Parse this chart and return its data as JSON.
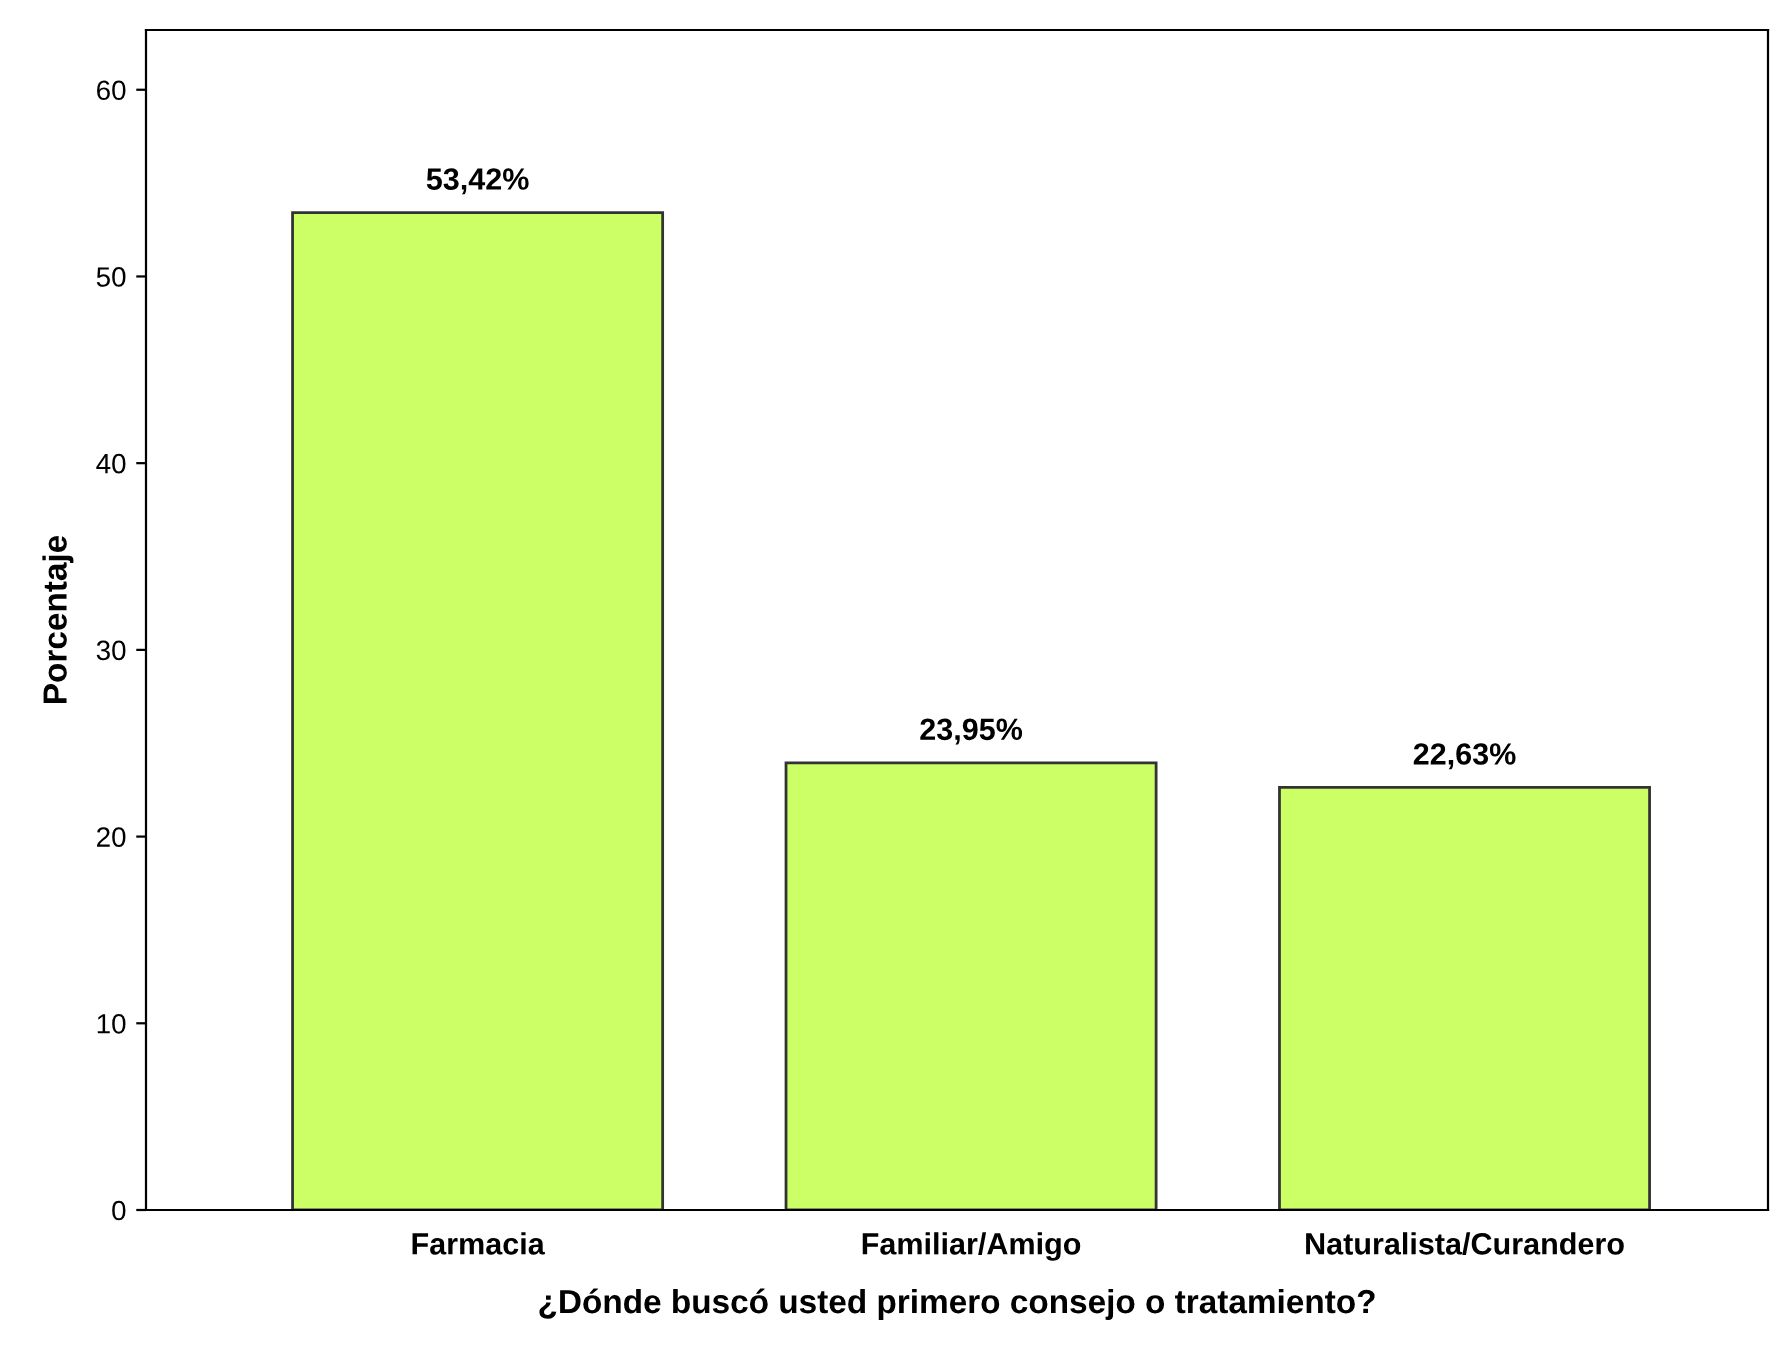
{
  "chart_data": {
    "type": "bar",
    "xlabel": "¿Dónde buscó usted primero consejo o tratamiento?",
    "ylabel": "Porcentaje",
    "categories": [
      "Farmacia",
      "Familiar/Amigo",
      "Naturalista/Curandero"
    ],
    "values": [
      53.42,
      23.95,
      22.63
    ],
    "value_labels": [
      "53,42%",
      "23,95%",
      "22,63%"
    ],
    "color": "#ccff66",
    "ylim": [
      0,
      63.2
    ],
    "yticks": [
      0,
      10,
      20,
      30,
      40,
      50,
      60
    ],
    "grid": false,
    "legend": false
  }
}
